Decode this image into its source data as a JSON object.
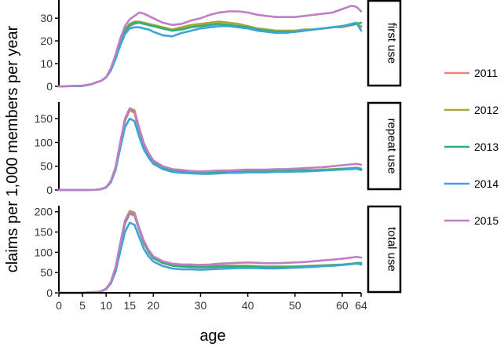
{
  "chart_data": {
    "type": "line",
    "xlabel": "age",
    "ylabel": "claims per 1,000 members per year",
    "x_ticks": [
      0,
      5,
      10,
      15,
      20,
      30,
      40,
      50,
      60,
      64
    ],
    "xlim": [
      0,
      64
    ],
    "legend_position": "right",
    "colors": {
      "2011": "#E8857A",
      "2012": "#A8A63A",
      "2013": "#2EAF7A",
      "2014": "#3AA5D8",
      "2015": "#C07EC4"
    },
    "legend": [
      "2011",
      "2012",
      "2013",
      "2014",
      "2015"
    ],
    "panels": [
      {
        "label": "first use",
        "ylim": [
          0,
          38
        ],
        "yticks": [
          0,
          10,
          20,
          30
        ],
        "x": [
          0,
          5,
          7,
          8,
          9,
          10,
          11,
          12,
          13,
          14,
          15,
          16,
          17,
          18,
          19,
          20,
          22,
          24,
          26,
          28,
          30,
          32,
          34,
          36,
          38,
          40,
          42,
          44,
          46,
          48,
          50,
          52,
          54,
          56,
          58,
          60,
          62,
          63,
          64
        ],
        "series": [
          {
            "name": "2011",
            "values": [
              0,
              0.2,
              1,
              1.8,
              2.5,
              4,
              7.5,
              13,
              19,
              24,
              26.5,
              27.5,
              28,
              27.5,
              27,
              26.5,
              25.5,
              24.5,
              25.5,
              26.5,
              27,
              27.5,
              27.5,
              27,
              26.5,
              26,
              25,
              24.5,
              24,
              24,
              24,
              24.5,
              25,
              25.5,
              26,
              26,
              27,
              27.5,
              26
            ]
          },
          {
            "name": "2012",
            "values": [
              0,
              0.2,
              1,
              1.8,
              2.5,
              4,
              7.5,
              13,
              20,
              25,
              27.5,
              28.5,
              28.5,
              28,
              27.5,
              27,
              26,
              25,
              26,
              27,
              27.5,
              28,
              28.5,
              28,
              27.5,
              26.5,
              25.5,
              25,
              24.5,
              24.5,
              24.5,
              25,
              25,
              25.5,
              26,
              26.5,
              27,
              27.5,
              26.5
            ]
          },
          {
            "name": "2013",
            "values": [
              0,
              0.2,
              1,
              1.8,
              2.5,
              4,
              7.5,
              13,
              19.5,
              24.5,
              27,
              28,
              28,
              27.5,
              27,
              26.5,
              25.5,
              24.5,
              25,
              26,
              26.5,
              27,
              27.5,
              27,
              26.5,
              26,
              25,
              24.5,
              24,
              24,
              24,
              24.5,
              25,
              25.5,
              26,
              26.5,
              27,
              27.5,
              28
            ]
          },
          {
            "name": "2014",
            "values": [
              0,
              0.2,
              1,
              1.8,
              2.5,
              4,
              7,
              12,
              18,
              23,
              25.5,
              26,
              26,
              25.5,
              25,
              24,
              22.5,
              22,
              23.5,
              24.5,
              25.5,
              26,
              26.5,
              26.5,
              26,
              25.5,
              24.5,
              24,
              23.5,
              23.5,
              24,
              24.5,
              25,
              25.5,
              26,
              26.5,
              27.5,
              28,
              24.5
            ]
          },
          {
            "name": "2015",
            "values": [
              0,
              0.3,
              1,
              1.8,
              2.5,
              4,
              8,
              14,
              21,
              26.5,
              29.5,
              31,
              32.5,
              32,
              31,
              30,
              28,
              27,
              27.5,
              29,
              30,
              31.5,
              32.5,
              33,
              33,
              32.5,
              31.5,
              31,
              30.5,
              30.5,
              30.5,
              31,
              31.5,
              32,
              32.5,
              34,
              35.5,
              35,
              33
            ]
          }
        ]
      },
      {
        "label": "repeat use",
        "ylim": [
          0,
          185
        ],
        "yticks": [
          0,
          50,
          100,
          150
        ],
        "x": [
          0,
          5,
          8,
          9,
          10,
          11,
          12,
          13,
          14,
          15,
          16,
          17,
          18,
          19,
          20,
          22,
          24,
          26,
          28,
          30,
          32,
          34,
          36,
          38,
          40,
          42,
          44,
          46,
          48,
          50,
          52,
          54,
          56,
          58,
          60,
          62,
          63,
          64
        ],
        "series": [
          {
            "name": "2011",
            "values": [
              0,
              0,
              0.5,
              2,
              6,
              18,
              45,
              95,
              145,
              168,
              162,
              125,
              95,
              75,
              60,
              48,
              42,
              40,
              38,
              37,
              37,
              38,
              38,
              38,
              39,
              39,
              39,
              39,
              40,
              40,
              41,
              41,
              42,
              43,
              44,
              45,
              46,
              44
            ]
          },
          {
            "name": "2012",
            "values": [
              0,
              0,
              0.5,
              2,
              6,
              19,
              48,
              100,
              150,
              172,
              168,
              130,
              98,
              78,
              62,
              50,
              43,
              41,
              39,
              38,
              38,
              39,
              39,
              39,
              40,
              40,
              40,
              40,
              41,
              41,
              42,
              42,
              43,
              44,
              45,
              46,
              47,
              45
            ]
          },
          {
            "name": "2013",
            "values": [
              0,
              0,
              0.5,
              2,
              6,
              18,
              46,
              97,
              148,
              170,
              165,
              128,
              96,
              76,
              60,
              48,
              42,
              40,
              38,
              37,
              37,
              38,
              38,
              38,
              39,
              39,
              39,
              39,
              40,
              40,
              41,
              41,
              42,
              43,
              44,
              45,
              46,
              44
            ]
          },
          {
            "name": "2014",
            "values": [
              0,
              0,
              0.5,
              2,
              5,
              16,
              42,
              88,
              132,
              150,
              145,
              112,
              85,
              68,
              55,
              44,
              38,
              36,
              35,
              34,
              34,
              35,
              36,
              36,
              37,
              37,
              37,
              38,
              38,
              39,
              39,
              40,
              41,
              42,
              43,
              44,
              45,
              42
            ]
          },
          {
            "name": "2015",
            "values": [
              0,
              0,
              0.5,
              2,
              6,
              19,
              47,
              99,
              150,
              171,
              165,
              130,
              98,
              77,
              62,
              50,
              44,
              42,
              40,
              39,
              40,
              41,
              41,
              42,
              43,
              43,
              43,
              44,
              44,
              45,
              46,
              47,
              48,
              50,
              52,
              54,
              55,
              53
            ]
          }
        ]
      },
      {
        "label": "total use",
        "ylim": [
          0,
          215
        ],
        "yticks": [
          0,
          50,
          100,
          150,
          200
        ],
        "x": [
          0,
          5,
          8,
          9,
          10,
          11,
          12,
          13,
          14,
          15,
          16,
          17,
          18,
          19,
          20,
          22,
          24,
          26,
          28,
          30,
          32,
          34,
          36,
          38,
          40,
          42,
          44,
          46,
          48,
          50,
          52,
          54,
          56,
          58,
          60,
          62,
          63,
          64
        ],
        "series": [
          {
            "name": "2011",
            "values": [
              0,
              0.2,
              2,
              4,
              10,
              26,
              58,
              115,
              170,
              195,
              190,
              155,
              122,
              100,
              85,
              73,
              67,
              65,
              64,
              63,
              63,
              64,
              65,
              65,
              65,
              64,
              63,
              63,
              63,
              64,
              64,
              65,
              66,
              67,
              69,
              71,
              72,
              70
            ]
          },
          {
            "name": "2012",
            "values": [
              0,
              0.2,
              2,
              4,
              10,
              27,
              62,
              122,
              178,
              202,
              198,
              160,
              126,
              104,
              88,
              76,
              69,
              67,
              66,
              65,
              66,
              67,
              67,
              67,
              67,
              66,
              65,
              65,
              65,
              65,
              66,
              67,
              68,
              69,
              70,
              72,
              74,
              72
            ]
          },
          {
            "name": "2013",
            "values": [
              0,
              0.2,
              2,
              4,
              10,
              26,
              60,
              118,
              174,
              198,
              194,
              157,
              124,
              102,
              86,
              74,
              67,
              65,
              64,
              63,
              64,
              65,
              65,
              65,
              65,
              64,
              63,
              63,
              63,
              64,
              65,
              66,
              67,
              68,
              69,
              71,
              73,
              74
            ]
          },
          {
            "name": "2014",
            "values": [
              0,
              0.2,
              2,
              4,
              9,
              23,
              52,
              102,
              150,
              173,
              168,
              138,
              108,
              90,
              77,
              66,
              60,
              58,
              58,
              57,
              58,
              59,
              60,
              61,
              61,
              61,
              60,
              60,
              61,
              62,
              63,
              64,
              66,
              67,
              69,
              71,
              73,
              70
            ]
          },
          {
            "name": "2015",
            "values": [
              0,
              0.2,
              2,
              4,
              10,
              27,
              63,
              122,
              178,
              200,
              195,
              160,
              128,
              106,
              90,
              78,
              72,
              70,
              70,
              69,
              70,
              72,
              73,
              74,
              75,
              74,
              73,
              73,
              74,
              75,
              76,
              78,
              80,
              82,
              84,
              87,
              89,
              87
            ]
          }
        ]
      }
    ]
  }
}
